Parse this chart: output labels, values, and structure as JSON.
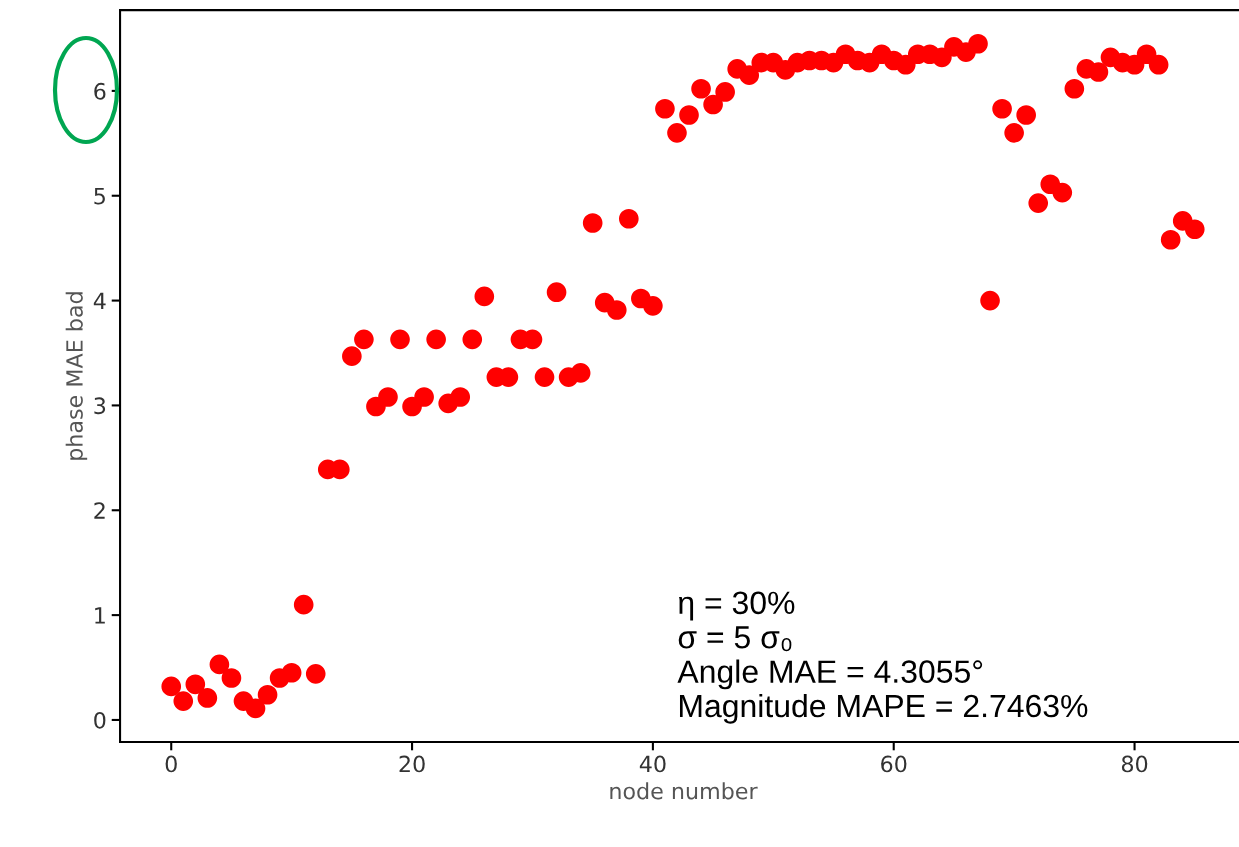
{
  "chart_data": {
    "type": "scatter",
    "xlabel": "node number",
    "ylabel": "phase MAE bad",
    "x": [
      0,
      1,
      2,
      3,
      4,
      5,
      6,
      7,
      8,
      9,
      10,
      11,
      12,
      13,
      14,
      15,
      16,
      17,
      18,
      19,
      20,
      21,
      22,
      23,
      24,
      25,
      26,
      27,
      28,
      29,
      30,
      31,
      32,
      33,
      34,
      35,
      36,
      37,
      38,
      39,
      40,
      41,
      42,
      43,
      44,
      45,
      46,
      47,
      48,
      49,
      50,
      51,
      52,
      53,
      54,
      55,
      56,
      57,
      58,
      59,
      60,
      61,
      62,
      63,
      64,
      65,
      66,
      67,
      68,
      69,
      70,
      71,
      72,
      73,
      74,
      75,
      76,
      77,
      78,
      79,
      80,
      81,
      82,
      83,
      84,
      85
    ],
    "series": [
      {
        "color": "#ff0000",
        "values": [
          0.32,
          0.18,
          0.34,
          0.21,
          0.53,
          0.4,
          0.18,
          0.11,
          0.24,
          0.4,
          0.45,
          1.1,
          0.44,
          2.39,
          2.39,
          3.47,
          3.63,
          2.99,
          3.08,
          3.63,
          2.99,
          3.08,
          3.63,
          3.02,
          3.08,
          3.63,
          4.04,
          3.27,
          3.27,
          3.63,
          3.63,
          3.27,
          4.08,
          3.27,
          3.31,
          4.74,
          3.98,
          3.91,
          4.78,
          4.02,
          3.95,
          5.83,
          5.6,
          5.77,
          6.02,
          5.87,
          5.99,
          6.21,
          6.15,
          6.27,
          6.27,
          6.2,
          6.27,
          6.29,
          6.29,
          6.27,
          6.35,
          6.29,
          6.27,
          6.35,
          6.29,
          6.25,
          6.35,
          6.35,
          6.32,
          6.42,
          6.37,
          6.45,
          4.0,
          5.83,
          5.6,
          5.77,
          4.93,
          5.11,
          5.03,
          6.02,
          6.21,
          6.18,
          6.32,
          6.27,
          6.25,
          6.35,
          6.25,
          4.58,
          4.76,
          4.68
        ]
      }
    ],
    "xlim": [
      -4.25,
      89.25
    ],
    "ylim": [
      -0.21,
      6.77
    ],
    "xticks": [
      0,
      20,
      40,
      60,
      80
    ],
    "yticks": [
      0,
      1,
      2,
      3,
      4,
      5,
      6
    ],
    "marker": "circle",
    "grid": false,
    "legend": false,
    "annotations": [
      "η = 30%\nσ = 5 σ₀\nAngle MAE = 4.3055°\nMagnitude MAPE = 2.7463%"
    ]
  }
}
